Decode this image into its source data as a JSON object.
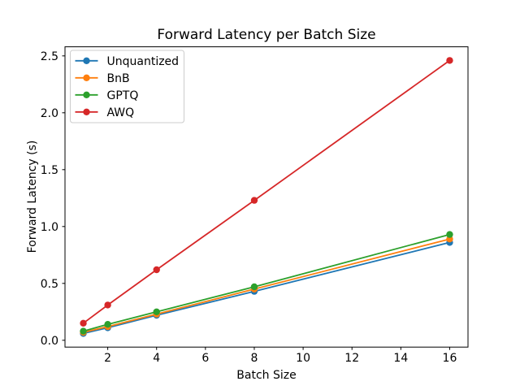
{
  "chart_data": {
    "type": "line",
    "title": "Forward Latency per Batch Size",
    "xlabel": "Batch Size",
    "ylabel": "Forward Latency (s)",
    "x": [
      1,
      2,
      4,
      8,
      16
    ],
    "series": [
      {
        "name": "Unquantized",
        "color": "#1f77b4",
        "values": [
          0.06,
          0.11,
          0.22,
          0.43,
          0.86
        ]
      },
      {
        "name": "BnB",
        "color": "#ff7f0e",
        "values": [
          0.07,
          0.12,
          0.23,
          0.45,
          0.89
        ]
      },
      {
        "name": "GPTQ",
        "color": "#2ca02c",
        "values": [
          0.08,
          0.14,
          0.25,
          0.47,
          0.93
        ]
      },
      {
        "name": "AWQ",
        "color": "#d62728",
        "values": [
          0.15,
          0.31,
          0.62,
          1.23,
          2.46
        ]
      }
    ],
    "xlim": [
      0.25,
      16.75
    ],
    "ylim": [
      -0.06,
      2.58
    ],
    "xticks": {
      "values": [
        2,
        4,
        6,
        8,
        10,
        12,
        14,
        16
      ],
      "labels": [
        "2",
        "4",
        "6",
        "8",
        "10",
        "12",
        "14",
        "16"
      ]
    },
    "yticks": {
      "values": [
        0.0,
        0.5,
        1.0,
        1.5,
        2.0,
        2.5
      ],
      "labels": [
        "0.0",
        "0.5",
        "1.0",
        "1.5",
        "2.0",
        "2.5"
      ]
    },
    "legend": {
      "position": "upper left",
      "entries": [
        "Unquantized",
        "BnB",
        "GPTQ",
        "AWQ"
      ]
    },
    "grid": false,
    "marker": "o",
    "axis_color": "#000000",
    "legend_border_color": "#cccccc"
  }
}
